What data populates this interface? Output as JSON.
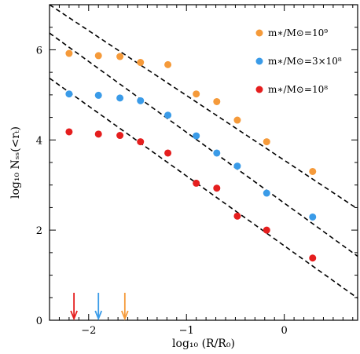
{
  "chart_data": {
    "type": "scatter",
    "xlabel": "log₁₀ (R/R₀)",
    "ylabel": "log₁₀ Nₛₛ(<rₜ)",
    "xlim": [
      -2.4,
      0.75
    ],
    "ylim": [
      0,
      7
    ],
    "x_ticks": [
      -2,
      -1,
      0
    ],
    "y_ticks": [
      0,
      2,
      4,
      6
    ],
    "grid": false,
    "legend_position": "top-right",
    "series": [
      {
        "name": "m∗/M⊙=10⁹",
        "color": "#f59a3a",
        "x": [
          -2.2,
          -1.9,
          -1.68,
          -1.47,
          -1.19,
          -0.9,
          -0.69,
          -0.48,
          -0.18,
          0.29
        ],
        "y": [
          5.92,
          5.87,
          5.85,
          5.72,
          5.67,
          5.02,
          4.85,
          4.44,
          3.96,
          3.3
        ],
        "fit_line": [
          [
            -2.4,
            7.0
          ],
          [
            0.75,
            2.47
          ]
        ],
        "arrow_x": -1.63
      },
      {
        "name": "m∗/M⊙=3×10⁸",
        "color": "#3a9be8",
        "x": [
          -2.2,
          -1.9,
          -1.68,
          -1.47,
          -1.19,
          -0.9,
          -0.69,
          -0.48,
          -0.18,
          0.29
        ],
        "y": [
          5.02,
          4.99,
          4.93,
          4.87,
          4.55,
          4.09,
          3.71,
          3.42,
          2.82,
          2.29
        ],
        "fit_line": [
          [
            -2.4,
            6.37
          ],
          [
            0.75,
            1.42
          ]
        ],
        "arrow_x": -1.9
      },
      {
        "name": "m∗/M⊙=10⁸",
        "color": "#e51e1e",
        "x": [
          -2.2,
          -1.9,
          -1.68,
          -1.47,
          -1.19,
          -0.9,
          -0.69,
          -0.48,
          -0.18,
          0.29
        ],
        "y": [
          4.18,
          4.13,
          4.1,
          3.96,
          3.71,
          3.04,
          2.93,
          2.31,
          2.0,
          1.38
        ],
        "fit_line": [
          [
            -2.4,
            5.37
          ],
          [
            0.75,
            0.49
          ]
        ],
        "arrow_x": -2.15
      }
    ]
  }
}
